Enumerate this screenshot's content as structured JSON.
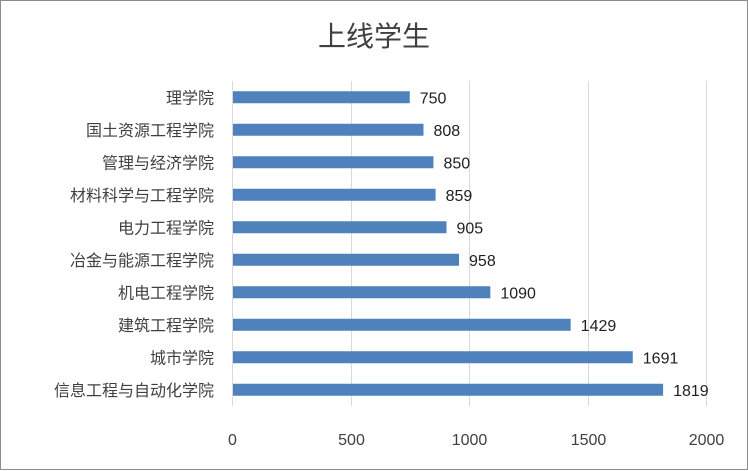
{
  "chart_data": {
    "type": "bar",
    "orientation": "horizontal",
    "title": "上线学生",
    "categories": [
      "理学院",
      "国土资源工程学院",
      "管理与经济学院",
      "材料科学与工程学院",
      "电力工程学院",
      "冶金与能源工程学院",
      "机电工程学院",
      "建筑工程学院",
      "城市学院",
      "信息工程与自动化学院"
    ],
    "values": [
      750,
      808,
      850,
      859,
      905,
      958,
      1090,
      1429,
      1691,
      1819
    ],
    "xlim": [
      0,
      2000
    ],
    "xticks": [
      0,
      500,
      1000,
      1500,
      2000
    ],
    "grid": true,
    "legend": "none",
    "bar_color": "#4f81bd",
    "data_labels": true
  }
}
